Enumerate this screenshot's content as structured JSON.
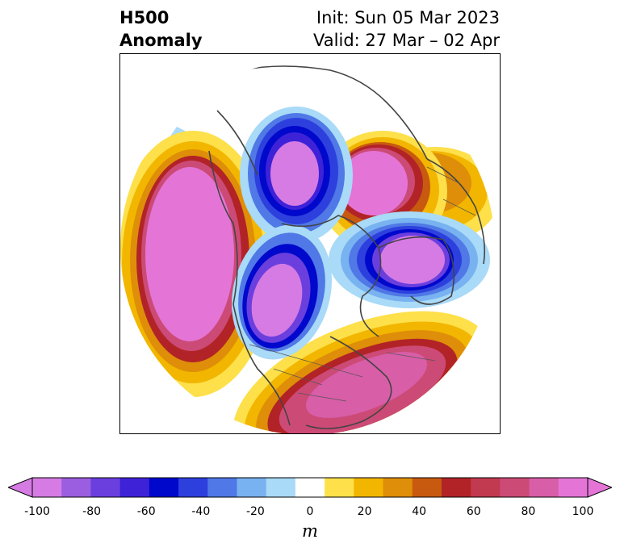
{
  "header": {
    "title_line1": "H500",
    "title_line2": "Anomaly",
    "init_line": "Init: Sun 05 Mar 2023",
    "valid_line": "Valid: 27 Mar – 02 Apr"
  },
  "map": {
    "projection": "north polar stereographic",
    "field": "500 hPa geopotential height anomaly",
    "features": [
      {
        "name": "ridge-north-pacific",
        "sign": "positive",
        "peak_m": 100
      },
      {
        "name": "trough-canada-west",
        "sign": "negative",
        "peak_m": -100
      },
      {
        "name": "trough-central-canada",
        "sign": "negative",
        "peak_m": -100
      },
      {
        "name": "ridge-greenland-arctic",
        "sign": "positive",
        "peak_m": 100
      },
      {
        "name": "trough-scandinavia-russia",
        "sign": "negative",
        "peak_m": -100
      },
      {
        "name": "ridge-europe-atlantic",
        "sign": "positive",
        "peak_m": 100
      },
      {
        "name": "ridge-east-asia",
        "sign": "positive",
        "peak_m": 40
      }
    ]
  },
  "colorbar": {
    "ticks": [
      "-100",
      "-80",
      "-60",
      "-40",
      "-20",
      "0",
      "20",
      "40",
      "60",
      "80",
      "100"
    ],
    "unit": "m",
    "colors": [
      "#d67be3",
      "#9c5ee0",
      "#6a3fde",
      "#3e22d8",
      "#0008cc",
      "#2d40dd",
      "#5078e6",
      "#78b2f0",
      "#a9daf7",
      "#ffffff",
      "#fde04a",
      "#f2b600",
      "#de8e08",
      "#c85a10",
      "#b22327",
      "#c23a50",
      "#cc4a76",
      "#d85ea8",
      "#e475d7"
    ],
    "extend_low": "#d67be3",
    "extend_high": "#e475d7"
  }
}
